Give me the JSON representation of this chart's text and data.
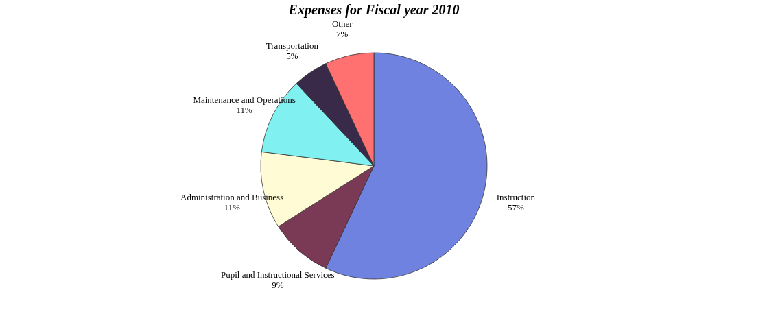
{
  "chart_data": {
    "type": "pie",
    "title": "Expenses for Fiscal year 2010",
    "categories": [
      "Instruction",
      "Pupil and Instructional Services",
      "Administration and Business",
      "Maintenance and Operations",
      "Transportation",
      "Other"
    ],
    "values": [
      57,
      9,
      11,
      11,
      5,
      7
    ],
    "value_labels": [
      "57%",
      "9%",
      "11%",
      "11%",
      "5%",
      "7%"
    ],
    "colors": [
      "#6f82e0",
      "#7a3a55",
      "#fffbd5",
      "#80f0f0",
      "#3a2a4a",
      "#ff7070"
    ],
    "legend": false
  }
}
